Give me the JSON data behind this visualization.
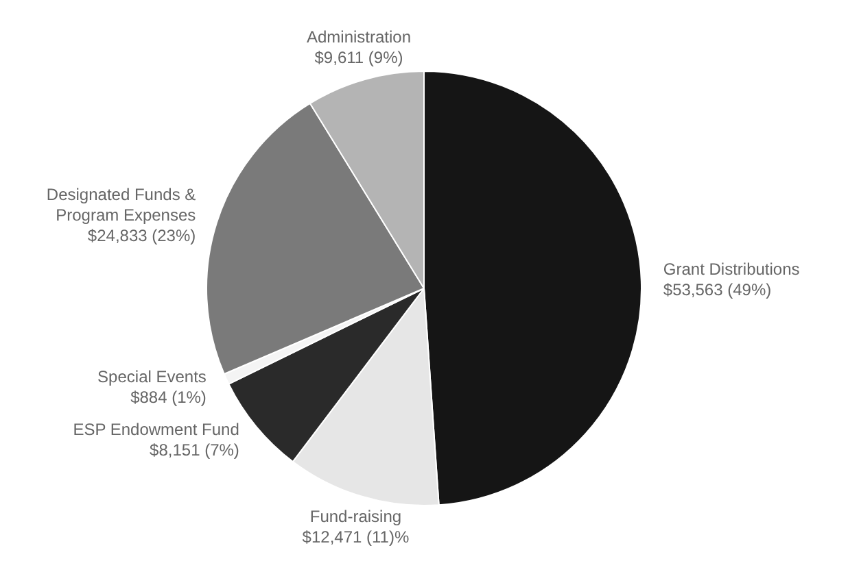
{
  "chart_data": {
    "type": "pie",
    "categories": [
      "Grant Distributions",
      "Fund-raising",
      "ESP Endowment Fund",
      "Special Events",
      "Designated Funds & Program Expenses",
      "Administration"
    ],
    "values": [
      53563,
      12471,
      8151,
      884,
      24833,
      9611
    ],
    "value_labels": [
      "$53,563 (49%)",
      "$12,471 (11)%",
      "$8,151 (7%)",
      "$884 (1%)",
      "$24,833 (23%)",
      "$9,611 (9%)"
    ],
    "colors": [
      "#151515",
      "#e6e6e6",
      "#2a2a2a",
      "#f4f4f4",
      "#7a7a7a",
      "#b4b4b4"
    ],
    "legend": false
  }
}
